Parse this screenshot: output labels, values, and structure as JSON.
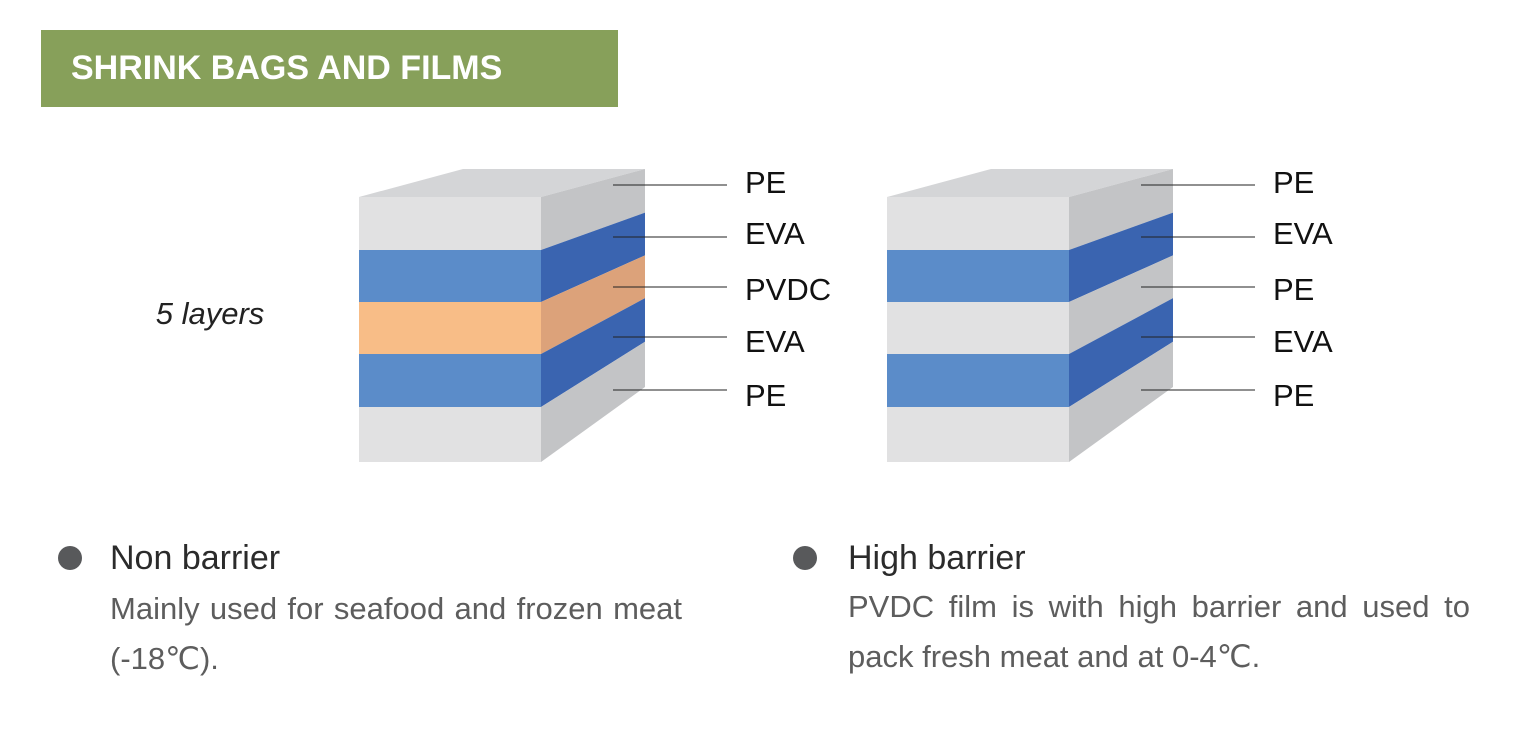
{
  "header": {
    "title": "SHRINK BAGS AND FILMS"
  },
  "side_label": "5 layers",
  "diagrams": [
    {
      "layers": [
        "PE",
        "EVA",
        "PVDC",
        "EVA",
        "PE"
      ]
    },
    {
      "layers": [
        "PE",
        "EVA",
        "PE",
        "EVA",
        "PE"
      ]
    }
  ],
  "bullets": [
    {
      "title": "Non barrier",
      "description": "Mainly used for seafood and frozen meat (-18℃)."
    },
    {
      "title": "High barrier",
      "description": "PVDC film is with high barrier and used to pack fresh meat and at 0-4℃."
    }
  ]
}
